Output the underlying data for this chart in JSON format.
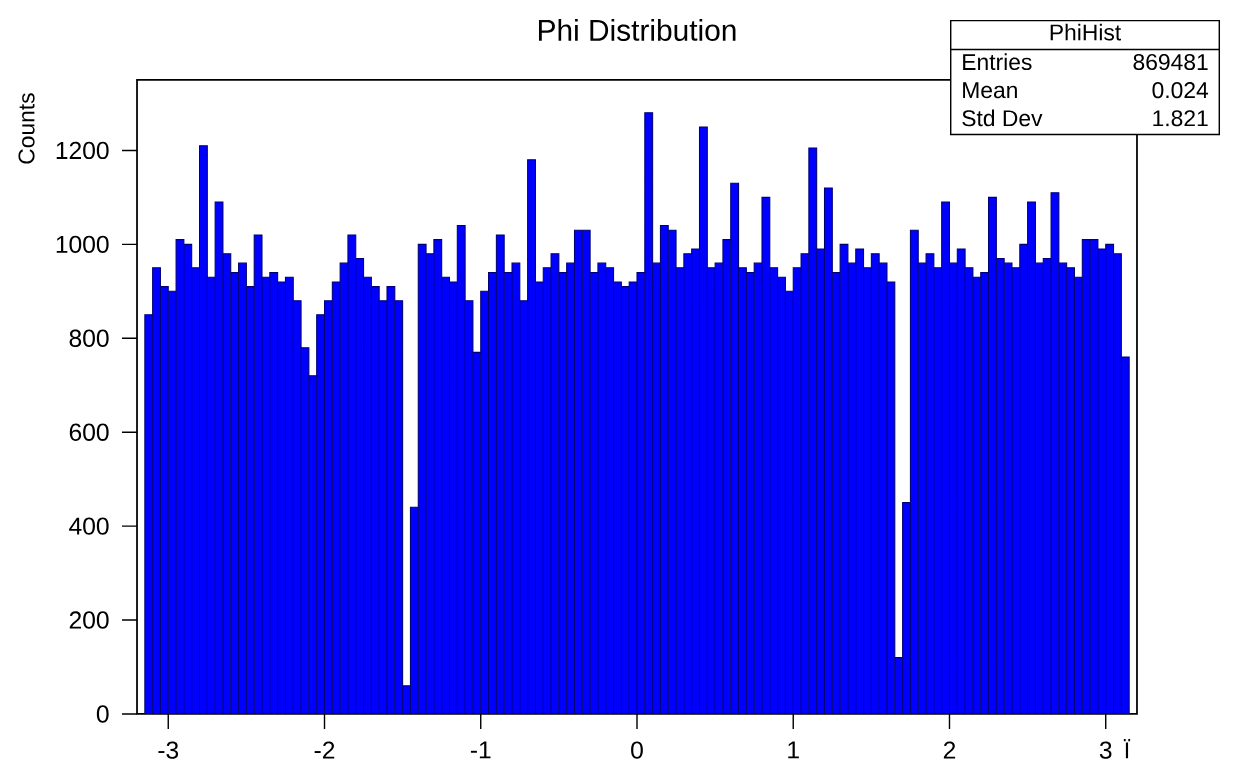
{
  "chart_data": {
    "type": "histogram",
    "title": "Phi Distribution",
    "xlabel": "Ï",
    "ylabel": "Counts",
    "bins": [
      -3.15,
      -3.1,
      -3.05,
      -3.0,
      -2.95,
      -2.9,
      -2.85,
      -2.8,
      -2.75,
      -2.7,
      -2.65,
      -2.6,
      -2.55,
      -2.5,
      -2.45,
      -2.4,
      -2.35,
      -2.3,
      -2.25,
      -2.2,
      -2.15,
      -2.1,
      -2.05,
      -2.0,
      -1.95,
      -1.9,
      -1.85,
      -1.8,
      -1.75,
      -1.7,
      -1.65,
      -1.6,
      -1.55,
      -1.5,
      -1.45,
      -1.4,
      -1.35,
      -1.3,
      -1.25,
      -1.2,
      -1.15,
      -1.1,
      -1.05,
      -1.0,
      -0.95,
      -0.9,
      -0.85,
      -0.8,
      -0.75,
      -0.7,
      -0.65,
      -0.6,
      -0.55,
      -0.5,
      -0.45,
      -0.4,
      -0.35,
      -0.3,
      -0.25,
      -0.2,
      -0.15,
      -0.1,
      -0.05,
      0.0,
      0.05,
      0.1,
      0.15,
      0.2,
      0.25,
      0.3,
      0.35,
      0.4,
      0.45,
      0.5,
      0.55,
      0.6,
      0.65,
      0.7,
      0.75,
      0.8,
      0.85,
      0.9,
      0.95,
      1.0,
      1.05,
      1.1,
      1.15,
      1.2,
      1.25,
      1.3,
      1.35,
      1.4,
      1.45,
      1.5,
      1.55,
      1.6,
      1.65,
      1.7,
      1.75,
      1.8,
      1.85,
      1.9,
      1.95,
      2.0,
      2.05,
      2.1,
      2.15,
      2.2,
      2.25,
      2.3,
      2.35,
      2.4,
      2.45,
      2.5,
      2.55,
      2.6,
      2.65,
      2.7,
      2.75,
      2.8,
      2.85,
      2.9,
      2.95,
      3.0,
      3.05,
      3.1,
      3.15
    ],
    "values": [
      850,
      950,
      910,
      900,
      1010,
      1000,
      950,
      1210,
      930,
      1090,
      980,
      940,
      960,
      910,
      1020,
      930,
      940,
      920,
      930,
      880,
      780,
      720,
      850,
      880,
      920,
      960,
      1020,
      970,
      930,
      910,
      880,
      910,
      880,
      60,
      440,
      1000,
      980,
      1010,
      930,
      920,
      1040,
      880,
      770,
      900,
      940,
      1020,
      940,
      960,
      880,
      1180,
      920,
      950,
      980,
      940,
      960,
      1030,
      1030,
      940,
      960,
      950,
      920,
      910,
      920,
      940,
      1280,
      960,
      1040,
      1030,
      950,
      980,
      990,
      1250,
      950,
      960,
      1010,
      1130,
      950,
      940,
      960,
      1100,
      950,
      930,
      900,
      950,
      980,
      1205,
      990,
      1120,
      940,
      1000,
      960,
      990,
      950,
      980,
      960,
      920,
      120,
      450,
      1030,
      960,
      980,
      950,
      1090,
      960,
      990,
      950,
      930,
      940,
      1100,
      970,
      960,
      950,
      1000,
      1090,
      960,
      970,
      1110,
      960,
      950,
      930,
      1010,
      1010,
      990,
      1000,
      980,
      760
    ],
    "color": "#0000ff",
    "xlim": [
      -3.2,
      3.2
    ],
    "ylim": [
      0,
      1350
    ],
    "xticks": [
      -3,
      -2,
      -1,
      0,
      1,
      2,
      3
    ],
    "yticks": [
      0,
      200,
      400,
      600,
      800,
      1000,
      1200
    ],
    "annotations": [
      "PhiHist",
      "Entries",
      "869481",
      "Mean",
      "0.024",
      "Std Dev",
      "1.821"
    ]
  }
}
